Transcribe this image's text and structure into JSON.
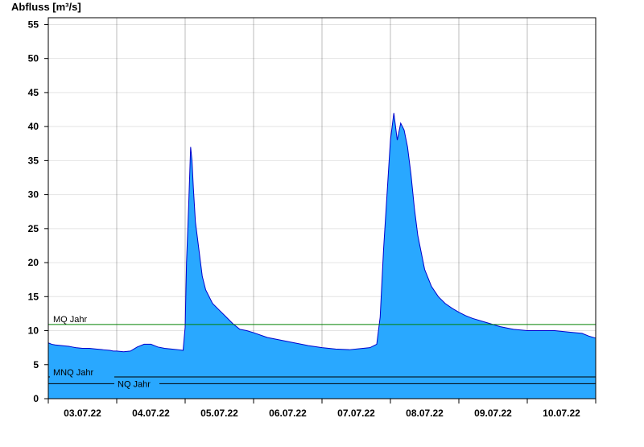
{
  "chart_data": {
    "type": "area",
    "ylabel": "Abfluss [m³/s]",
    "xlabel": "",
    "title": "",
    "ylim": [
      0,
      56
    ],
    "y_ticks": [
      0,
      5,
      10,
      15,
      20,
      25,
      30,
      35,
      40,
      45,
      50,
      55
    ],
    "x_range": [
      0,
      8
    ],
    "day_boundaries": [
      0,
      1,
      2,
      3,
      4,
      5,
      6,
      7,
      8
    ],
    "x_tick_labels": [
      "03.07.22",
      "04.07.22",
      "05.07.22",
      "06.07.22",
      "07.07.22",
      "08.07.22",
      "09.07.22",
      "10.07.22"
    ],
    "grid": true,
    "legend": "none",
    "colors": {
      "area_fill": "#29a8ff",
      "area_line": "#0000cc",
      "mq_line": "#008000",
      "mnq_line": "#000000",
      "nq_line": "#000000"
    },
    "reference_lines": [
      {
        "label": "MQ Jahr",
        "value": 10.9
      },
      {
        "label": "MNQ Jahr",
        "value": 3.2
      },
      {
        "label": "NQ Jahr",
        "value": 2.2
      }
    ],
    "series": [
      {
        "x": [
          0,
          0.05,
          0.1,
          0.2,
          0.3,
          0.35,
          0.4,
          0.5,
          0.6,
          0.7,
          0.8,
          0.9,
          0.95,
          1.0,
          1.1,
          1.2,
          1.3,
          1.4,
          1.5,
          1.6,
          1.7,
          1.8,
          1.9,
          1.97,
          2.0,
          2.02,
          2.05,
          2.08,
          2.1,
          2.12,
          2.15,
          2.2,
          2.25,
          2.3,
          2.4,
          2.5,
          2.6,
          2.7,
          2.8,
          2.9,
          3.0,
          3.2,
          3.4,
          3.6,
          3.8,
          4.0,
          4.2,
          4.4,
          4.6,
          4.7,
          4.8,
          4.85,
          4.9,
          4.95,
          5.0,
          5.05,
          5.1,
          5.15,
          5.2,
          5.25,
          5.3,
          5.35,
          5.4,
          5.5,
          5.6,
          5.7,
          5.8,
          5.9,
          6.0,
          6.1,
          6.2,
          6.4,
          6.6,
          6.8,
          7.0,
          7.2,
          7.4,
          7.6,
          7.8,
          7.9,
          8.0
        ],
        "y": [
          8.2,
          8.0,
          7.9,
          7.8,
          7.7,
          7.6,
          7.5,
          7.4,
          7.4,
          7.3,
          7.2,
          7.1,
          7.0,
          7.0,
          6.9,
          7.0,
          7.6,
          8.0,
          8.0,
          7.6,
          7.4,
          7.3,
          7.2,
          7.1,
          10.5,
          20.0,
          28.0,
          37.0,
          35.0,
          31.0,
          26.0,
          22.0,
          18.0,
          16.0,
          14.0,
          13.0,
          12.0,
          11.0,
          10.2,
          10.0,
          9.7,
          9.0,
          8.6,
          8.2,
          7.8,
          7.5,
          7.3,
          7.2,
          7.4,
          7.5,
          8.0,
          12.0,
          22.0,
          30.0,
          38.0,
          42.0,
          38.0,
          40.5,
          39.5,
          37.0,
          33.0,
          28.0,
          24.0,
          19.0,
          16.5,
          15.0,
          14.0,
          13.3,
          12.7,
          12.2,
          11.8,
          11.2,
          10.6,
          10.2,
          10.0,
          10.0,
          10.0,
          9.8,
          9.6,
          9.2,
          8.9
        ]
      }
    ]
  }
}
